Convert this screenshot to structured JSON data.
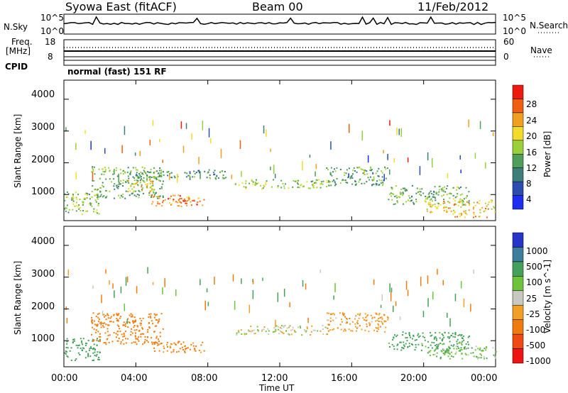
{
  "header": {
    "station": "Syowa East (fitACF)",
    "beam": "Beam 00",
    "date": "11/Feb/2012"
  },
  "top_panel": {
    "nsky_label": "N.Sky",
    "nsky_ticks": [
      "10^5",
      "10^0"
    ],
    "nsearch_label": "N.Search",
    "nsearch_ticks": [
      "10^5",
      "10^0"
    ],
    "freq_label_1": "Freq.",
    "freq_label_2": "[MHz]",
    "freq_ticks": [
      "18",
      "8"
    ],
    "nave_label": "Nave",
    "nave_ticks": [
      "60",
      "0"
    ],
    "cpid_label": "CPID",
    "cpid_text": "normal (fast) 151 RF"
  },
  "colors": {
    "power_scale": [
      "#1e2ef0",
      "#2c4cb0",
      "#3d7e7a",
      "#4f9e5a",
      "#9bcf3c",
      "#f2dc2a",
      "#f0a020",
      "#f06010",
      "#ee1a10"
    ],
    "velocity_scale": [
      "#2634c8",
      "#3d7d9d",
      "#45a05a",
      "#6fc23c",
      "#c8c8c0",
      "#f0a028",
      "#f07c10",
      "#f04a14",
      "#ee1414"
    ]
  },
  "chart_data": [
    {
      "type": "heatmap",
      "title": "Power",
      "xlabel": "Time UT",
      "ylabel": "Slant Range [km]",
      "x_ticks": [
        "00:00",
        "04:00",
        "08:00",
        "12:00",
        "16:00",
        "20:00",
        "00:00"
      ],
      "y_ticks": [
        1000,
        2000,
        3000,
        4000
      ],
      "ylim": [
        180,
        4600
      ],
      "colorbar_label": "Power [dB]",
      "colorbar_ticks": [
        4,
        8,
        12,
        16,
        20,
        24,
        28
      ],
      "colorbar_range": [
        0,
        30
      ],
      "echo_regions": [
        {
          "t_start": 0.0,
          "t_end": 2.0,
          "r_low": 400,
          "r_high": 1100,
          "level": 14
        },
        {
          "t_start": 1.5,
          "t_end": 5.5,
          "r_low": 900,
          "r_high": 1900,
          "level": 12
        },
        {
          "t_start": 3.5,
          "t_end": 5.0,
          "r_low": 1100,
          "r_high": 1500,
          "level": 20
        },
        {
          "t_start": 4.8,
          "t_end": 7.8,
          "r_low": 650,
          "r_high": 1000,
          "level": 24
        },
        {
          "t_start": 6.0,
          "t_end": 6.8,
          "r_low": 700,
          "r_high": 900,
          "level": 28
        },
        {
          "t_start": 4.0,
          "t_end": 9.0,
          "r_low": 1500,
          "r_high": 1800,
          "level": 10
        },
        {
          "t_start": 9.5,
          "t_end": 14.8,
          "r_low": 1200,
          "r_high": 1500,
          "level": 14
        },
        {
          "t_start": 14.5,
          "t_end": 18.0,
          "r_low": 1300,
          "r_high": 1900,
          "level": 11
        },
        {
          "t_start": 18.0,
          "t_end": 22.5,
          "r_low": 700,
          "r_high": 1300,
          "level": 12
        },
        {
          "t_start": 20.0,
          "t_end": 24.0,
          "r_low": 450,
          "r_high": 850,
          "level": 20
        },
        {
          "t_start": 21.5,
          "t_end": 23.5,
          "r_low": 300,
          "r_high": 450,
          "level": 22
        }
      ]
    },
    {
      "type": "heatmap",
      "title": "Velocity",
      "xlabel": "Time UT",
      "ylabel": "Slant Range [km]",
      "x_ticks": [
        "00:00",
        "04:00",
        "08:00",
        "12:00",
        "16:00",
        "20:00",
        "00:00"
      ],
      "y_ticks": [
        1000,
        2000,
        3000,
        4000
      ],
      "ylim": [
        180,
        4600
      ],
      "colorbar_label": "Velocity [m s^-1]",
      "colorbar_ticks": [
        1000,
        500,
        100,
        25,
        -25,
        -100,
        -500,
        -1000
      ],
      "echo_regions": [
        {
          "t_start": 0.0,
          "t_end": 2.0,
          "r_low": 400,
          "r_high": 1100,
          "velocity": 300
        },
        {
          "t_start": 1.5,
          "t_end": 5.5,
          "r_low": 900,
          "r_high": 1900,
          "velocity": -300
        },
        {
          "t_start": 4.8,
          "t_end": 7.8,
          "r_low": 650,
          "r_high": 1000,
          "velocity": -150
        },
        {
          "t_start": 9.5,
          "t_end": 14.8,
          "r_low": 1200,
          "r_high": 1500,
          "velocity": 0
        },
        {
          "t_start": 14.5,
          "t_end": 18.0,
          "r_low": 1300,
          "r_high": 1900,
          "velocity": -80
        },
        {
          "t_start": 18.0,
          "t_end": 22.5,
          "r_low": 700,
          "r_high": 1300,
          "velocity": 200
        },
        {
          "t_start": 20.0,
          "t_end": 24.0,
          "r_low": 450,
          "r_high": 850,
          "velocity": 80
        }
      ]
    }
  ]
}
